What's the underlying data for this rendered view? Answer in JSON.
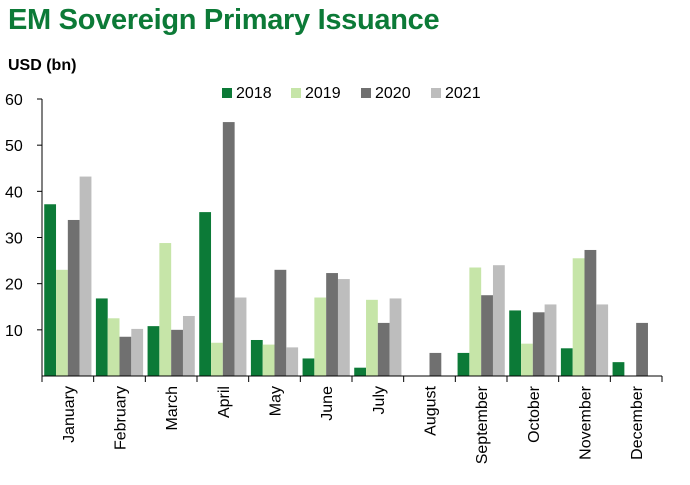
{
  "chart_data": {
    "type": "bar",
    "title": "EM Sovereign Primary Issuance",
    "ylabel": "USD (bn)",
    "xlabel": "",
    "ylim": [
      0,
      60
    ],
    "yticks": [
      10,
      20,
      30,
      40,
      50,
      60
    ],
    "grid": false,
    "legend": "top",
    "categories": [
      "January",
      "February",
      "March",
      "April",
      "May",
      "June",
      "July",
      "August",
      "September",
      "October",
      "November",
      "December"
    ],
    "series": [
      {
        "name": "2018",
        "color": "#0c7a37",
        "values": [
          37.2,
          16.8,
          10.8,
          35.5,
          7.8,
          3.8,
          1.8,
          0,
          5.0,
          14.2,
          6.0,
          3.0
        ]
      },
      {
        "name": "2019",
        "color": "#c6e5a8",
        "values": [
          23.0,
          12.5,
          28.8,
          7.2,
          6.8,
          17.0,
          16.5,
          0,
          23.5,
          7.0,
          25.5,
          0
        ]
      },
      {
        "name": "2020",
        "color": "#707070",
        "values": [
          33.8,
          8.5,
          10.0,
          55.0,
          23.0,
          22.3,
          11.5,
          5.0,
          17.5,
          13.8,
          27.3,
          11.5
        ]
      },
      {
        "name": "2021",
        "color": "#bdbdbd",
        "values": [
          43.2,
          10.2,
          13.0,
          17.0,
          6.2,
          21.0,
          16.8,
          0,
          24.0,
          15.5,
          15.5,
          0
        ]
      }
    ]
  }
}
